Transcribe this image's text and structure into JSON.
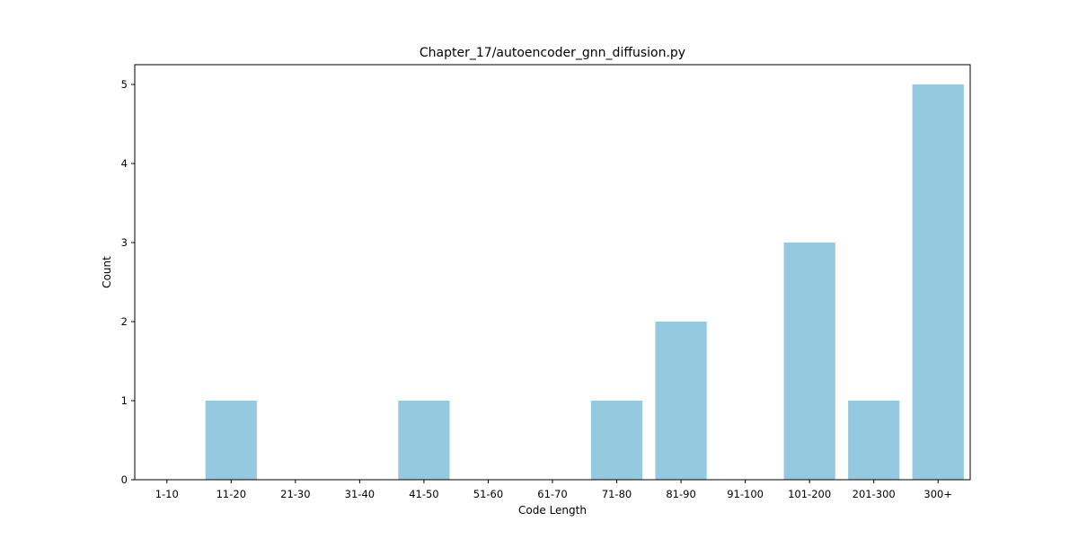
{
  "chart_data": {
    "type": "bar",
    "title": "Chapter_17/autoencoder_gnn_diffusion.py",
    "xlabel": "Code Length",
    "ylabel": "Count",
    "categories": [
      "1-10",
      "11-20",
      "21-30",
      "31-40",
      "41-50",
      "51-60",
      "61-70",
      "71-80",
      "81-90",
      "91-100",
      "101-200",
      "201-300",
      "300+"
    ],
    "values": [
      0,
      1,
      0,
      0,
      1,
      0,
      0,
      1,
      2,
      0,
      3,
      1,
      5
    ],
    "yticks": [
      "0",
      "1",
      "2",
      "3",
      "4",
      "5"
    ],
    "ylim": [
      0,
      5.25
    ],
    "bar_color": "#94c9df",
    "grid": false,
    "legend": false
  }
}
